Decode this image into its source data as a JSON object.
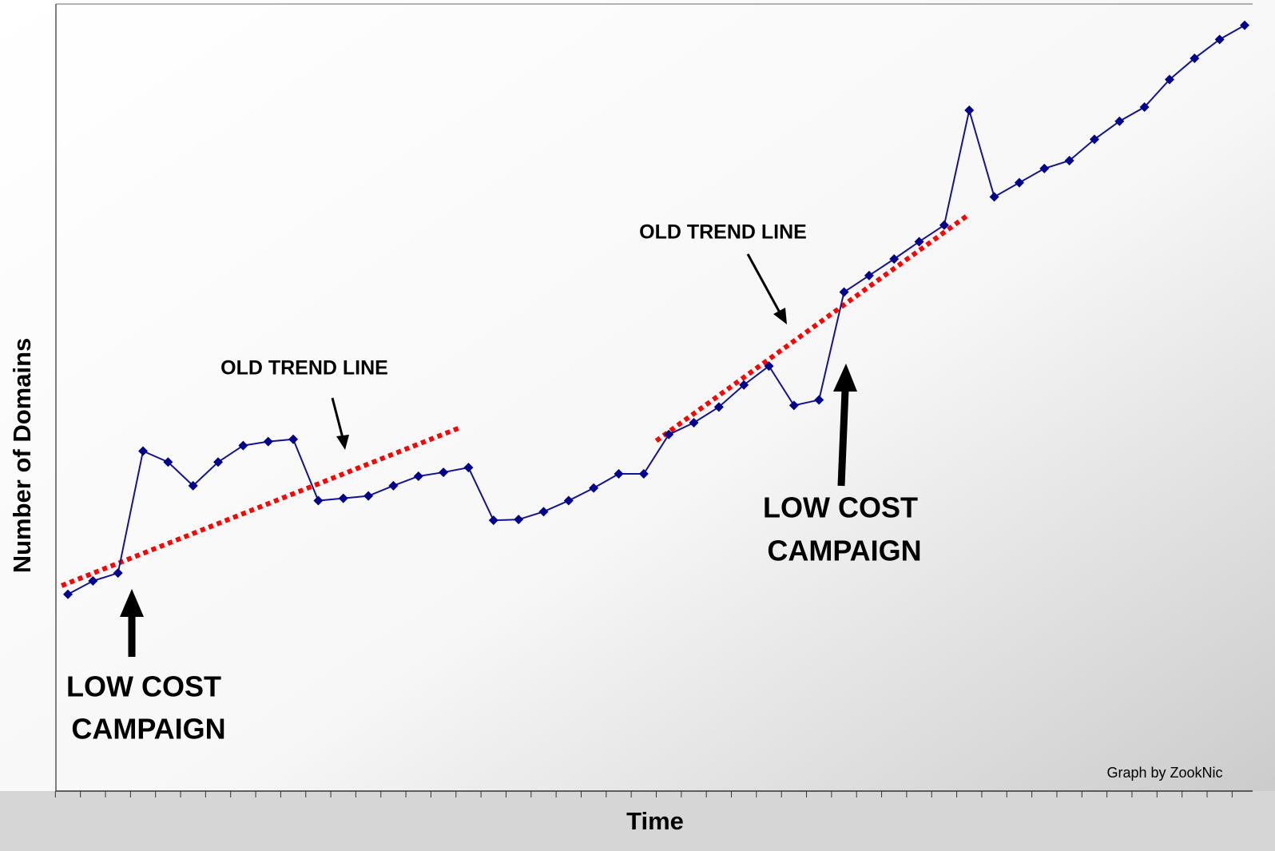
{
  "chart_data": {
    "type": "line",
    "x_label": "Time",
    "y_label": "Number of Domains",
    "categories": [
      null,
      null,
      null,
      null,
      null,
      null,
      null,
      null,
      null,
      null,
      null,
      null,
      null,
      null,
      null,
      null,
      null,
      null,
      null,
      null,
      null,
      null,
      null,
      null,
      null,
      null,
      null,
      null,
      null,
      null,
      null,
      null,
      null,
      null,
      null,
      null,
      null,
      null,
      null,
      null,
      null,
      null,
      null,
      null,
      null,
      null,
      null,
      null
    ],
    "series": [
      {
        "color": "#14148c",
        "values": [
          25.0,
          26.7,
          27.7,
          43.2,
          41.8,
          38.8,
          41.8,
          43.9,
          44.4,
          44.7,
          36.9,
          37.2,
          37.5,
          38.8,
          40.0,
          40.5,
          41.1,
          34.4,
          34.5,
          35.5,
          36.9,
          38.5,
          40.3,
          40.3,
          45.3,
          46.8,
          48.8,
          51.6,
          54.0,
          49.0,
          49.7,
          63.4,
          65.5,
          67.6,
          69.8,
          71.9,
          86.5,
          75.5,
          77.3,
          79.1,
          80.1,
          82.8,
          85.1,
          86.9,
          90.4,
          93.1,
          95.5,
          97.3
        ]
      }
    ],
    "trend_lines": [
      {
        "color": "#ff0000",
        "x": [
          -0.25,
          15.6
        ],
        "values": [
          26.1,
          46.1
        ]
      },
      {
        "color": "#ff0000",
        "x": [
          23.5,
          36.0
        ],
        "values": [
          44.5,
          73.3
        ]
      }
    ],
    "ylim": [
      0,
      100
    ],
    "annotations": [
      {
        "lines": [
          "OLD TREND LINE"
        ]
      },
      {
        "lines": [
          "OLD TREND LINE"
        ]
      },
      {
        "lines": [
          "LOW COST",
          "CAMPAIGN"
        ]
      },
      {
        "lines": [
          "LOW COST",
          "CAMPAIGN"
        ]
      }
    ],
    "credit": "Graph by ZookNic"
  }
}
